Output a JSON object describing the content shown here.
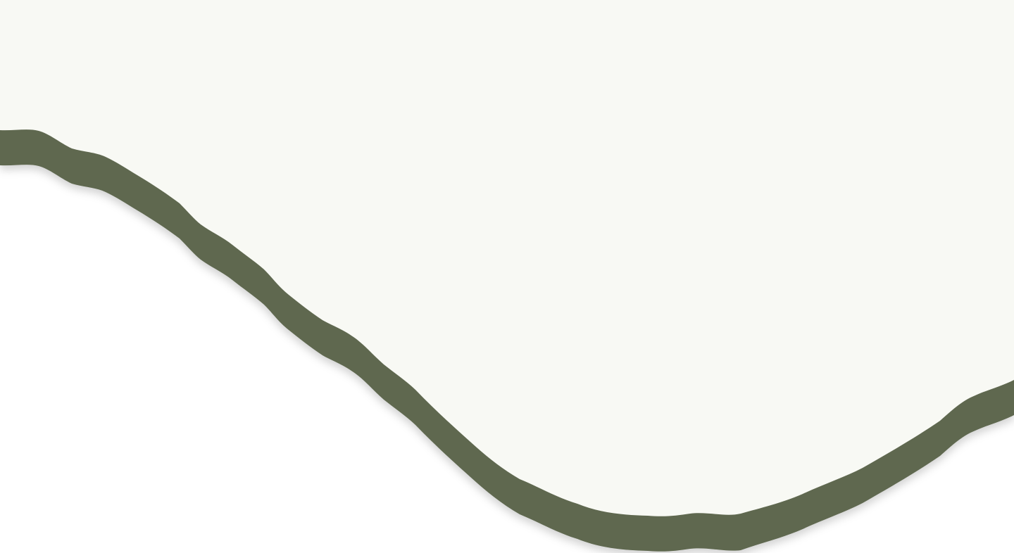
{
  "colors": {
    "page_background": "#ffffff",
    "panel_fill": "#f8f9f4",
    "wave_band": "#5e674f",
    "shadow": "#000000"
  },
  "icons": {
    "wave_divider": "wavy-band-divider"
  }
}
